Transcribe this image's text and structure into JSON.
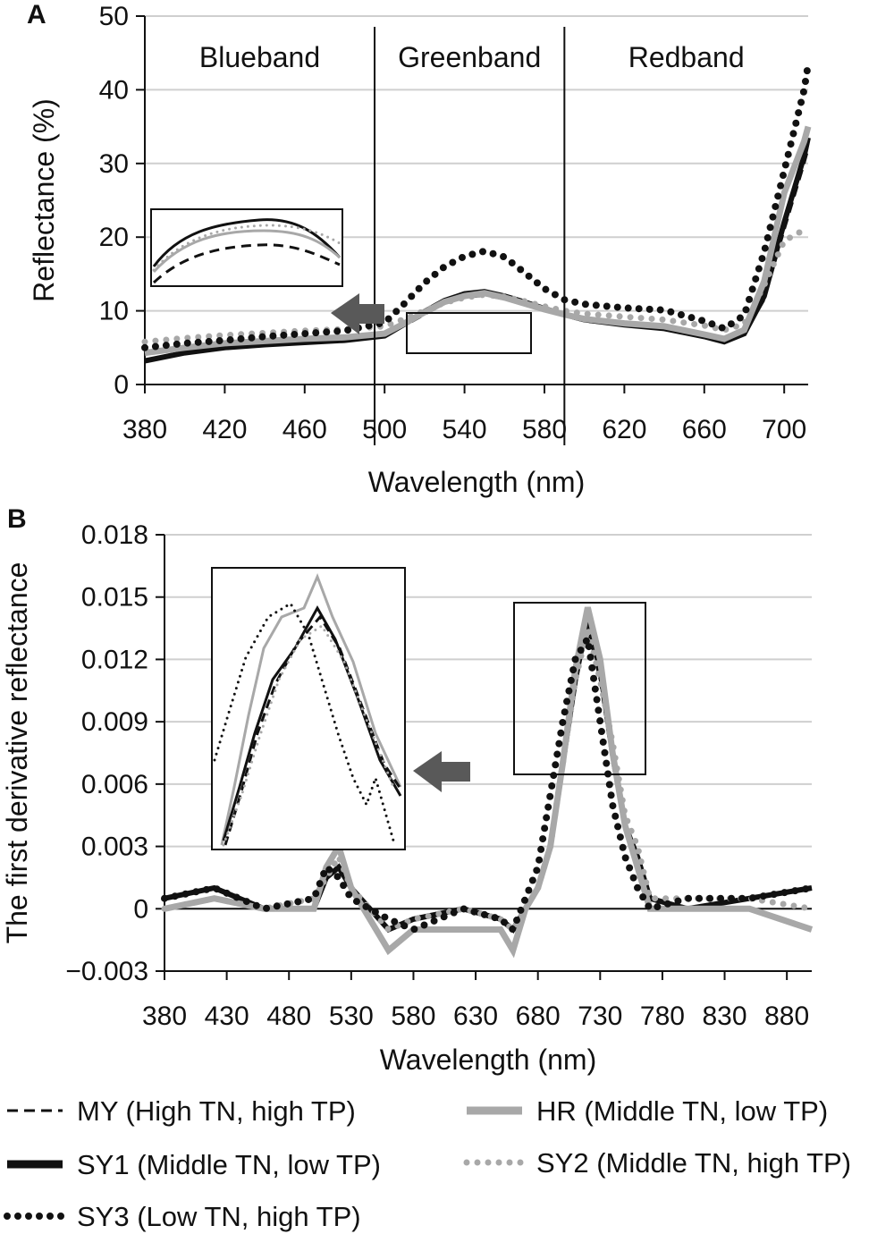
{
  "colors": {
    "MY": "#111111",
    "SY1": "#111111",
    "SY3": "#111111",
    "HR": "#a8a8a8",
    "SY2": "#a8a8a8",
    "grid": "#cfcfcf",
    "arrow": "#595959"
  },
  "legend": [
    {
      "key": "MY",
      "label": "MY (High TN, high TP)",
      "style": "dashed"
    },
    {
      "key": "HR",
      "label": "HR (Middle TN, low TP)",
      "style": "thick-solid"
    },
    {
      "key": "SY1",
      "label": "SY1 (Middle TN, low TP)",
      "style": "thick-solid"
    },
    {
      "key": "SY2",
      "label": "SY2 (Middle TN, high TP)",
      "style": "dotted"
    },
    {
      "key": "SY3",
      "label": "SY3 (Low TN, high TP)",
      "style": "dotted"
    }
  ],
  "chart_data": [
    {
      "panel": "A",
      "type": "line",
      "xlabel": "Wavelength (nm)",
      "ylabel": "Reflectance (%)",
      "xlim": [
        380,
        712
      ],
      "ylim": [
        0,
        50
      ],
      "xticks": [
        "380",
        "420",
        "460",
        "500",
        "540",
        "580",
        "620",
        "660",
        "700"
      ],
      "yticks": [
        "0",
        "10",
        "20",
        "30",
        "40",
        "50"
      ],
      "grid": "horizontal",
      "bands": [
        {
          "label": "Blueband",
          "from": 380,
          "to": 495
        },
        {
          "label": "Greenband",
          "from": 495,
          "to": 590
        },
        {
          "label": "Redband",
          "from": 590,
          "to": 712
        }
      ],
      "x": [
        380,
        400,
        420,
        440,
        460,
        480,
        500,
        510,
        520,
        530,
        540,
        550,
        560,
        570,
        580,
        590,
        600,
        620,
        640,
        660,
        670,
        680,
        690,
        700,
        710,
        712
      ],
      "series": [
        {
          "name": "MY",
          "values": [
            3.3,
            4.5,
            5.2,
            5.6,
            5.9,
            6.1,
            6.6,
            8.0,
            9.5,
            11.0,
            11.8,
            12.1,
            11.6,
            10.8,
            10.0,
            9.3,
            8.6,
            8.0,
            7.5,
            6.5,
            5.8,
            6.8,
            11.5,
            21.0,
            30.0,
            32.0
          ]
        },
        {
          "name": "SY1",
          "values": [
            3.2,
            4.3,
            5.0,
            5.4,
            5.7,
            6.0,
            6.6,
            8.2,
            9.9,
            11.4,
            12.3,
            12.6,
            12.0,
            11.2,
            10.3,
            9.5,
            8.8,
            8.1,
            7.6,
            6.5,
            5.8,
            6.9,
            12.0,
            22.0,
            31.0,
            33.5
          ]
        },
        {
          "name": "HR",
          "values": [
            4.3,
            5.0,
            5.6,
            5.9,
            6.2,
            6.4,
            6.9,
            8.3,
            9.8,
            11.2,
            12.0,
            12.4,
            11.8,
            11.0,
            10.2,
            9.5,
            8.9,
            8.3,
            7.9,
            6.8,
            6.2,
            7.4,
            14.0,
            26.0,
            33.0,
            35.0
          ]
        },
        {
          "name": "SY2",
          "values": [
            5.8,
            6.3,
            6.7,
            7.0,
            7.3,
            7.5,
            7.9,
            8.9,
            10.0,
            11.1,
            11.8,
            12.2,
            11.9,
            11.3,
            10.6,
            10.0,
            9.6,
            9.2,
            8.8,
            8.0,
            7.4,
            8.2,
            13.5,
            19.5,
            21.0,
            21.0
          ]
        },
        {
          "name": "SY3",
          "values": [
            5.0,
            5.6,
            6.0,
            6.5,
            6.9,
            7.3,
            8.4,
            11.0,
            13.8,
            16.0,
            17.4,
            18.1,
            17.3,
            15.2,
            13.0,
            11.5,
            10.9,
            10.4,
            10.1,
            8.6,
            7.6,
            9.4,
            18.0,
            29.0,
            40.0,
            43.5
          ]
        }
      ]
    },
    {
      "panel": "B",
      "type": "line",
      "xlabel": "Wavelength (nm)",
      "ylabel": "The first derivative reflectance",
      "xlim": [
        380,
        900
      ],
      "ylim": [
        -0.003,
        0.018
      ],
      "xticks": [
        "380",
        "430",
        "480",
        "530",
        "580",
        "630",
        "680",
        "730",
        "780",
        "830",
        "880"
      ],
      "yticks": [
        "−0.003",
        "0",
        "0.003",
        "0.006",
        "0.009",
        "0.012",
        "0.015",
        "0.018"
      ],
      "grid": "horizontal",
      "x": [
        380,
        420,
        460,
        500,
        510,
        520,
        530,
        560,
        580,
        620,
        650,
        660,
        670,
        680,
        690,
        700,
        710,
        720,
        730,
        740,
        750,
        760,
        770,
        800,
        850,
        900
      ],
      "series": [
        {
          "name": "MY",
          "values": [
            0.0005,
            0.001,
            0.0,
            0.0,
            0.0015,
            0.002,
            0.001,
            -0.001,
            -0.0005,
            0.0,
            -0.0005,
            -0.001,
            0.0,
            0.001,
            0.003,
            0.007,
            0.011,
            0.0135,
            0.011,
            0.007,
            0.004,
            0.0025,
            0.0005,
            0.0,
            0.0005,
            0.001
          ]
        },
        {
          "name": "SY1",
          "values": [
            0.0005,
            0.001,
            0.0,
            0.0,
            0.0015,
            0.002,
            0.001,
            -0.001,
            -0.0005,
            0.0,
            -0.0005,
            -0.001,
            0.0,
            0.001,
            0.003,
            0.007,
            0.011,
            0.014,
            0.0115,
            0.0075,
            0.004,
            0.0025,
            0.0005,
            0.0,
            0.0005,
            0.001
          ]
        },
        {
          "name": "HR",
          "values": [
            0.0,
            0.0005,
            0.0,
            0.0,
            0.002,
            0.003,
            0.001,
            -0.002,
            -0.001,
            -0.001,
            -0.001,
            -0.002,
            0.0,
            0.001,
            0.003,
            0.007,
            0.0115,
            0.0145,
            0.012,
            0.0075,
            0.004,
            0.002,
            0.0,
            0.0,
            0.0,
            -0.001
          ]
        },
        {
          "name": "SY2",
          "values": [
            0.0,
            0.0005,
            0.0,
            0.0005,
            0.0015,
            0.0025,
            0.001,
            -0.001,
            -0.0005,
            0.0,
            -0.0005,
            -0.001,
            0.0,
            0.001,
            0.003,
            0.007,
            0.011,
            0.0135,
            0.011,
            0.008,
            0.0045,
            0.003,
            0.0005,
            0.0005,
            0.0005,
            0.0
          ]
        },
        {
          "name": "SY3",
          "values": [
            0.0005,
            0.001,
            0.0,
            0.0005,
            0.002,
            0.0015,
            0.0005,
            -0.0005,
            -0.001,
            0.0,
            -0.0005,
            -0.001,
            0.0005,
            0.002,
            0.0055,
            0.009,
            0.012,
            0.013,
            0.009,
            0.005,
            0.0025,
            0.001,
            0.0,
            0.0005,
            0.0005,
            0.001
          ]
        }
      ]
    }
  ]
}
